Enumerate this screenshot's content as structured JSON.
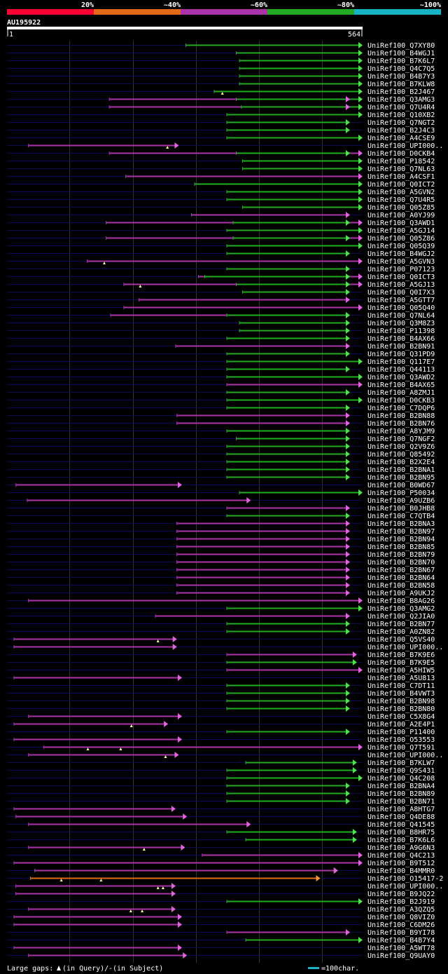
{
  "colors": {
    "background": "#000000",
    "red": "#ff0033",
    "orange": "#e06a15",
    "purple": "#aa33aa",
    "green": "#22aa22",
    "cyan": "#19b4c4",
    "purple_arrow": "#dd66dd",
    "green_arrow": "#55dd55",
    "orange_arrow": "#ee9944",
    "track": "#0a0a55",
    "grid": "#333333",
    "gap_marker": "#ffff99"
  },
  "chart_data": {
    "type": "alignment_overview",
    "title": "AU195922",
    "query_range": [
      1,
      564
    ],
    "query_start_label": "1",
    "query_end_label": "564",
    "identity_scale": [
      {
        "label": "20%",
        "color": "red"
      },
      {
        "label": "~40%",
        "color": "orange"
      },
      {
        "label": "~60%",
        "color": "purple"
      },
      {
        "label": "~80%",
        "color": "green"
      },
      {
        "label": "~100%",
        "color": "cyan"
      }
    ],
    "grid_positions": [
      100,
      200,
      300,
      400,
      500
    ],
    "hits": [
      {
        "name": "UniRef100_Q7XY80",
        "start": 284,
        "end": 564,
        "color": "green",
        "arrow": true
      },
      {
        "name": "UniRef100_B4WGJ1",
        "start": 364,
        "end": 564,
        "color": "green",
        "arrow": true
      },
      {
        "name": "UniRef100_B7K6L7",
        "start": 369,
        "end": 564,
        "color": "green",
        "arrow": true
      },
      {
        "name": "UniRef100_Q4C7Q5",
        "start": 369,
        "end": 564,
        "color": "green",
        "arrow": true
      },
      {
        "name": "UniRef100_B4B7Y3",
        "start": 369,
        "end": 564,
        "color": "green",
        "arrow": true
      },
      {
        "name": "UniRef100_B7KLW8",
        "start": 369,
        "end": 564,
        "color": "green",
        "arrow": true
      },
      {
        "name": "UniRef100_B2J467",
        "start": 329,
        "end": 564,
        "color": "green",
        "arrow": true,
        "gaps": [
          342
        ]
      },
      {
        "name": "UniRef100_Q3AMG3",
        "start": 163,
        "end": 544,
        "color": "purple",
        "arrow": true,
        "extra": {
          "start": 364,
          "end": 564,
          "color": "green"
        }
      },
      {
        "name": "UniRef100_Q7U4R4",
        "start": 163,
        "end": 544,
        "color": "purple",
        "arrow": true,
        "extra": {
          "start": 372,
          "end": 564,
          "color": "green"
        }
      },
      {
        "name": "UniRef100_Q10XB2",
        "start": 349,
        "end": 564,
        "color": "green",
        "arrow": true
      },
      {
        "name": "UniRef100_Q7NGT2",
        "start": 349,
        "end": 544,
        "color": "green",
        "arrow": true
      },
      {
        "name": "UniRef100_B2J4C3",
        "start": 349,
        "end": 544,
        "color": "green",
        "arrow": true
      },
      {
        "name": "UniRef100_A4CSE9",
        "start": 349,
        "end": 564,
        "color": "green",
        "arrow": true
      },
      {
        "name": "UniRef100_UPI000..",
        "start": 35,
        "end": 273,
        "color": "purple",
        "arrow": true,
        "gaps": [
          255
        ]
      },
      {
        "name": "UniRef100_D0CKB4",
        "start": 163,
        "end": 564,
        "color": "purple",
        "arrow": true,
        "extra": {
          "start": 364,
          "end": 544,
          "color": "green"
        }
      },
      {
        "name": "UniRef100_P18542",
        "start": 374,
        "end": 564,
        "color": "green",
        "arrow": true
      },
      {
        "name": "UniRef100_Q7NL63",
        "start": 374,
        "end": 564,
        "color": "green",
        "arrow": true
      },
      {
        "name": "UniRef100_A4CSF1",
        "start": 189,
        "end": 564,
        "color": "purple",
        "arrow": true
      },
      {
        "name": "UniRef100_Q0ICT2",
        "start": 298,
        "end": 564,
        "color": "green",
        "arrow": true
      },
      {
        "name": "UniRef100_A5GVN2",
        "start": 349,
        "end": 564,
        "color": "green",
        "arrow": true
      },
      {
        "name": "UniRef100_Q7U4R5",
        "start": 349,
        "end": 564,
        "color": "green",
        "arrow": true
      },
      {
        "name": "UniRef100_Q05Z85",
        "start": 374,
        "end": 564,
        "color": "green",
        "arrow": true
      },
      {
        "name": "UniRef100_A0YJ99",
        "start": 293,
        "end": 544,
        "color": "purple",
        "arrow": true
      },
      {
        "name": "UniRef100_Q3AWD1",
        "start": 158,
        "end": 564,
        "color": "purple",
        "arrow": true,
        "extra": {
          "start": 359,
          "end": 544,
          "color": "green"
        }
      },
      {
        "name": "UniRef100_A5GJ14",
        "start": 349,
        "end": 564,
        "color": "green",
        "arrow": true
      },
      {
        "name": "UniRef100_Q05Z86",
        "start": 158,
        "end": 564,
        "color": "purple",
        "arrow": true,
        "extra": {
          "start": 359,
          "end": 544,
          "color": "green"
        }
      },
      {
        "name": "UniRef100_Q05Q39",
        "start": 349,
        "end": 564,
        "color": "green",
        "arrow": true
      },
      {
        "name": "UniRef100_B4WGJ2",
        "start": 349,
        "end": 544,
        "color": "green",
        "arrow": true
      },
      {
        "name": "UniRef100_A5GVN3",
        "start": 128,
        "end": 564,
        "color": "purple",
        "arrow": true,
        "gaps": [
          155
        ]
      },
      {
        "name": "UniRef100_P07123",
        "start": 349,
        "end": 544,
        "color": "green",
        "arrow": true
      },
      {
        "name": "UniRef100_Q0ICT3",
        "start": 304,
        "end": 564,
        "color": "purple",
        "arrow": true,
        "extra": {
          "start": 314,
          "end": 544,
          "color": "green"
        }
      },
      {
        "name": "UniRef100_A5GJ13",
        "start": 186,
        "end": 564,
        "color": "purple",
        "arrow": true,
        "extra": {
          "start": 364,
          "end": 544,
          "color": "green"
        },
        "gaps": [
          212
        ]
      },
      {
        "name": "UniRef100_Q0I7X3",
        "start": 374,
        "end": 544,
        "color": "green",
        "arrow": true
      },
      {
        "name": "UniRef100_A5GTT7",
        "start": 210,
        "end": 544,
        "color": "purple",
        "arrow": true
      },
      {
        "name": "UniRef100_Q05Q40",
        "start": 186,
        "end": 564,
        "color": "purple",
        "arrow": true
      },
      {
        "name": "UniRef100_Q7NL64",
        "start": 165,
        "end": 544,
        "color": "purple",
        "arrow": true,
        "extra": {
          "start": 349,
          "end": 544,
          "color": "green"
        }
      },
      {
        "name": "UniRef100_Q3M8Z3",
        "start": 369,
        "end": 544,
        "color": "green",
        "arrow": true
      },
      {
        "name": "UniRef100_P11398",
        "start": 369,
        "end": 544,
        "color": "green",
        "arrow": true
      },
      {
        "name": "UniRef100_B4AX66",
        "start": 349,
        "end": 544,
        "color": "green",
        "arrow": true
      },
      {
        "name": "UniRef100_B2BN91",
        "start": 268,
        "end": 544,
        "color": "purple",
        "arrow": true
      },
      {
        "name": "UniRef100_Q31PD9",
        "start": 349,
        "end": 544,
        "color": "green",
        "arrow": true
      },
      {
        "name": "UniRef100_Q117E7",
        "start": 349,
        "end": 564,
        "color": "green",
        "arrow": true
      },
      {
        "name": "UniRef100_Q44113",
        "start": 349,
        "end": 544,
        "color": "green",
        "arrow": true
      },
      {
        "name": "UniRef100_Q3AWD2",
        "start": 349,
        "end": 564,
        "color": "green",
        "arrow": true
      },
      {
        "name": "UniRef100_B4AX65",
        "start": 349,
        "end": 564,
        "color": "purple",
        "arrow": true
      },
      {
        "name": "UniRef100_A8ZMJ1",
        "start": 349,
        "end": 544,
        "color": "green",
        "arrow": true
      },
      {
        "name": "UniRef100_D0CKB3",
        "start": 349,
        "end": 564,
        "color": "green",
        "arrow": true
      },
      {
        "name": "UniRef100_C7DQP6",
        "start": 349,
        "end": 544,
        "color": "green",
        "arrow": true
      },
      {
        "name": "UniRef100_B2BN88",
        "start": 270,
        "end": 544,
        "color": "purple",
        "arrow": true
      },
      {
        "name": "UniRef100_B2BN76",
        "start": 270,
        "end": 544,
        "color": "purple",
        "arrow": true
      },
      {
        "name": "UniRef100_A8YJM9",
        "start": 349,
        "end": 544,
        "color": "green",
        "arrow": true
      },
      {
        "name": "UniRef100_Q7NGF2",
        "start": 364,
        "end": 544,
        "color": "green",
        "arrow": true
      },
      {
        "name": "UniRef100_Q2V9Z6",
        "start": 349,
        "end": 544,
        "color": "green",
        "arrow": true
      },
      {
        "name": "UniRef100_Q85492",
        "start": 349,
        "end": 544,
        "color": "green",
        "arrow": true
      },
      {
        "name": "UniRef100_B2X2E4",
        "start": 349,
        "end": 544,
        "color": "green",
        "arrow": true
      },
      {
        "name": "UniRef100_B2BNA1",
        "start": 349,
        "end": 544,
        "color": "green",
        "arrow": true
      },
      {
        "name": "UniRef100_B2BN95",
        "start": 349,
        "end": 544,
        "color": "green",
        "arrow": true
      },
      {
        "name": "UniRef100_B0WD67",
        "start": 15,
        "end": 278,
        "color": "purple",
        "arrow": true
      },
      {
        "name": "UniRef100_P50034",
        "start": 369,
        "end": 564,
        "color": "green",
        "arrow": true
      },
      {
        "name": "UniRef100_A9UZB6",
        "start": 33,
        "end": 387,
        "color": "purple",
        "arrow": true
      },
      {
        "name": "UniRef100_B0JHB8",
        "start": 349,
        "end": 544,
        "color": "purple",
        "arrow": true
      },
      {
        "name": "UniRef100_C7QTB4",
        "start": 349,
        "end": 544,
        "color": "green",
        "arrow": true
      },
      {
        "name": "UniRef100_B2BNA3",
        "start": 270,
        "end": 544,
        "color": "purple",
        "arrow": true
      },
      {
        "name": "UniRef100_B2BN97",
        "start": 270,
        "end": 544,
        "color": "purple",
        "arrow": true
      },
      {
        "name": "UniRef100_B2BN94",
        "start": 270,
        "end": 544,
        "color": "purple",
        "arrow": true
      },
      {
        "name": "UniRef100_B2BN85",
        "start": 270,
        "end": 544,
        "color": "purple",
        "arrow": true
      },
      {
        "name": "UniRef100_B2BN79",
        "start": 270,
        "end": 544,
        "color": "purple",
        "arrow": true
      },
      {
        "name": "UniRef100_B2BN70",
        "start": 270,
        "end": 544,
        "color": "purple",
        "arrow": true
      },
      {
        "name": "UniRef100_B2BN67",
        "start": 270,
        "end": 544,
        "color": "purple",
        "arrow": true
      },
      {
        "name": "UniRef100_B2BN64",
        "start": 270,
        "end": 544,
        "color": "purple",
        "arrow": true
      },
      {
        "name": "UniRef100_B2BN58",
        "start": 270,
        "end": 544,
        "color": "purple",
        "arrow": true
      },
      {
        "name": "UniRef100_A9UKJ2",
        "start": 270,
        "end": 544,
        "color": "purple",
        "arrow": true
      },
      {
        "name": "UniRef100_B8AG26",
        "start": 35,
        "end": 564,
        "color": "purple",
        "arrow": true
      },
      {
        "name": "UniRef100_Q3AMG2",
        "start": 349,
        "end": 564,
        "color": "green",
        "arrow": true
      },
      {
        "name": "UniRef100_Q2JIA0",
        "start": 236,
        "end": 544,
        "color": "purple",
        "arrow": true
      },
      {
        "name": "UniRef100_B2BN77",
        "start": 349,
        "end": 544,
        "color": "green",
        "arrow": true
      },
      {
        "name": "UniRef100_A0ZN82",
        "start": 349,
        "end": 544,
        "color": "green",
        "arrow": true
      },
      {
        "name": "UniRef100_Q5VS40",
        "start": 12,
        "end": 270,
        "color": "purple",
        "arrow": true,
        "gaps": [
          240
        ]
      },
      {
        "name": "UniRef100_UPI000..",
        "start": 12,
        "end": 270,
        "color": "purple",
        "arrow": true
      },
      {
        "name": "UniRef100_B7K9E6",
        "start": 349,
        "end": 555,
        "color": "purple",
        "arrow": true
      },
      {
        "name": "UniRef100_B7K9E5",
        "start": 349,
        "end": 555,
        "color": "green",
        "arrow": true
      },
      {
        "name": "UniRef100_A5HIW5",
        "start": 349,
        "end": 564,
        "color": "purple",
        "arrow": true
      },
      {
        "name": "UniRef100_A5U813",
        "start": 12,
        "end": 278,
        "color": "purple",
        "arrow": true
      },
      {
        "name": "UniRef100_C7DT11",
        "start": 349,
        "end": 544,
        "color": "green",
        "arrow": true
      },
      {
        "name": "UniRef100_B4VWT3",
        "start": 349,
        "end": 544,
        "color": "green",
        "arrow": true
      },
      {
        "name": "UniRef100_B2BN98",
        "start": 349,
        "end": 544,
        "color": "green",
        "arrow": true
      },
      {
        "name": "UniRef100_B2BN80",
        "start": 349,
        "end": 544,
        "color": "green",
        "arrow": true
      },
      {
        "name": "UniRef100_C5X8G4",
        "start": 35,
        "end": 278,
        "color": "purple",
        "arrow": true
      },
      {
        "name": "UniRef100_A2E4P1",
        "start": 12,
        "end": 256,
        "color": "purple",
        "arrow": true,
        "gaps": [
          198
        ]
      },
      {
        "name": "UniRef100_P11400",
        "start": 349,
        "end": 544,
        "color": "green",
        "arrow": true
      },
      {
        "name": "UniRef100_O53553",
        "start": 12,
        "end": 278,
        "color": "purple",
        "arrow": true
      },
      {
        "name": "UniRef100_Q7T591",
        "start": 59,
        "end": 564,
        "color": "purple",
        "arrow": true,
        "gaps": [
          129,
          181
        ]
      },
      {
        "name": "UniRef100_UPI000..",
        "start": 35,
        "end": 273,
        "color": "purple",
        "arrow": true,
        "gaps": [
          252
        ]
      },
      {
        "name": "UniRef100_B7KLW7",
        "start": 379,
        "end": 555,
        "color": "green",
        "arrow": true
      },
      {
        "name": "UniRef100_Q9S431",
        "start": 349,
        "end": 555,
        "color": "green",
        "arrow": true
      },
      {
        "name": "UniRef100_Q4C208",
        "start": 349,
        "end": 564,
        "color": "green",
        "arrow": true
      },
      {
        "name": "UniRef100_B2BNA4",
        "start": 349,
        "end": 544,
        "color": "green",
        "arrow": true
      },
      {
        "name": "UniRef100_B2BN89",
        "start": 349,
        "end": 544,
        "color": "green",
        "arrow": true
      },
      {
        "name": "UniRef100_B2BN71",
        "start": 349,
        "end": 544,
        "color": "green",
        "arrow": true
      },
      {
        "name": "UniRef100_A8HTG7",
        "start": 12,
        "end": 268,
        "color": "purple",
        "arrow": true
      },
      {
        "name": "UniRef100_Q4DE88",
        "start": 15,
        "end": 286,
        "color": "purple",
        "arrow": true
      },
      {
        "name": "UniRef100_Q41545",
        "start": 35,
        "end": 387,
        "color": "purple",
        "arrow": true
      },
      {
        "name": "UniRef100_B8HR75",
        "start": 349,
        "end": 555,
        "color": "green",
        "arrow": true
      },
      {
        "name": "UniRef100_B7K6L6",
        "start": 379,
        "end": 555,
        "color": "green",
        "arrow": true
      },
      {
        "name": "UniRef100_A9G6N3",
        "start": 35,
        "end": 283,
        "color": "purple",
        "arrow": true,
        "gaps": [
          218
        ]
      },
      {
        "name": "UniRef100_Q4C213",
        "start": 310,
        "end": 564,
        "color": "purple",
        "arrow": true
      },
      {
        "name": "UniRef100_B9T512",
        "start": 12,
        "end": 564,
        "color": "purple",
        "arrow": true
      },
      {
        "name": "UniRef100_B4MMR0",
        "start": 45,
        "end": 525,
        "color": "orange",
        "arrow": true,
        "extra": {
          "start": 45,
          "end": 525,
          "color": "purple"
        }
      },
      {
        "name": "UniRef100_O15417-2",
        "start": 38,
        "end": 497,
        "color": "orange",
        "arrow": true,
        "gaps": [
          87,
          150
        ]
      },
      {
        "name": "UniRef100_UPI000..",
        "start": 15,
        "end": 268,
        "color": "purple",
        "arrow": true,
        "gaps": [
          240,
          248
        ]
      },
      {
        "name": "UniRef100_B9JQ22",
        "start": 15,
        "end": 268,
        "color": "purple",
        "arrow": true
      },
      {
        "name": "UniRef100_B2J919",
        "start": 349,
        "end": 564,
        "color": "green",
        "arrow": true
      },
      {
        "name": "UniRef100_A3QZQ5",
        "start": 35,
        "end": 268,
        "color": "purple",
        "arrow": true,
        "gaps": [
          197,
          215
        ]
      },
      {
        "name": "UniRef100_Q8VIZ0",
        "start": 12,
        "end": 278,
        "color": "purple",
        "arrow": true
      },
      {
        "name": "UniRef100_C6DM26",
        "start": 12,
        "end": 278,
        "color": "purple",
        "arrow": true
      },
      {
        "name": "UniRef100_B9YI78",
        "start": 349,
        "end": 544,
        "color": "purple",
        "arrow": true
      },
      {
        "name": "UniRef100_B4B7Y4",
        "start": 379,
        "end": 564,
        "color": "green",
        "arrow": true
      },
      {
        "name": "UniRef100_A5WT78",
        "start": 12,
        "end": 278,
        "color": "purple",
        "arrow": true
      },
      {
        "name": "UniRef100_Q9UAY0",
        "start": 35,
        "end": 286,
        "color": "purple",
        "arrow": true
      }
    ]
  },
  "footer": {
    "gaps_prefix": "Large gaps:",
    "gaps_query": "(in Query)/",
    "gaps_subject": "-(in Subject)",
    "scale_text": "=100char."
  }
}
